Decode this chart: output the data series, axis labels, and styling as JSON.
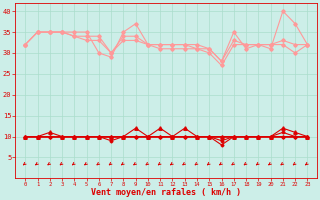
{
  "x": [
    0,
    1,
    2,
    3,
    4,
    5,
    6,
    7,
    8,
    9,
    10,
    11,
    12,
    13,
    14,
    15,
    16,
    17,
    18,
    19,
    20,
    21,
    22,
    23
  ],
  "rafales": [
    32,
    35,
    35,
    35,
    35,
    35,
    30,
    29,
    35,
    37,
    32,
    31,
    31,
    31,
    31,
    31,
    28,
    35,
    31,
    32,
    31,
    40,
    37,
    32
  ],
  "moyen_hi": [
    32,
    35,
    35,
    35,
    34,
    34,
    34,
    30,
    34,
    34,
    32,
    32,
    32,
    32,
    32,
    31,
    28,
    33,
    32,
    32,
    32,
    33,
    32,
    32
  ],
  "moyen_lo": [
    32,
    35,
    35,
    35,
    34,
    33,
    33,
    30,
    33,
    33,
    32,
    32,
    32,
    32,
    31,
    30,
    27,
    32,
    32,
    32,
    32,
    32,
    30,
    32
  ],
  "wind_tri": [
    10,
    10,
    11,
    10,
    10,
    10,
    10,
    10,
    10,
    12,
    10,
    12,
    10,
    12,
    10,
    10,
    10,
    10,
    10,
    10,
    10,
    12,
    11,
    10
  ],
  "wind_med": [
    10,
    10,
    10,
    10,
    10,
    10,
    10,
    10,
    10,
    10,
    10,
    10,
    10,
    10,
    10,
    10,
    9,
    10,
    10,
    10,
    10,
    11,
    10,
    10
  ],
  "wind_low": [
    10,
    10,
    10,
    10,
    10,
    10,
    10,
    9,
    10,
    10,
    10,
    10,
    10,
    10,
    10,
    10,
    8,
    10,
    10,
    10,
    10,
    10,
    10,
    10
  ],
  "wind_flat": [
    10,
    10,
    10,
    10,
    10,
    10,
    10,
    10,
    10,
    10,
    10,
    10,
    10,
    10,
    10,
    10,
    10,
    10,
    10,
    10,
    10,
    10,
    10,
    10
  ],
  "bg_color": "#cceee8",
  "grid_color": "#aaddcc",
  "dark_red": "#dd0000",
  "light_pink": "#ff9999",
  "xlabel": "Vent moyen/en rafales ( km/h )",
  "ylim": [
    0,
    42
  ],
  "yticks": [
    5,
    10,
    15,
    20,
    25,
    30,
    35,
    40
  ],
  "xticks": [
    0,
    1,
    2,
    3,
    4,
    5,
    6,
    7,
    8,
    9,
    10,
    11,
    12,
    13,
    14,
    15,
    16,
    17,
    18,
    19,
    20,
    21,
    22,
    23
  ]
}
